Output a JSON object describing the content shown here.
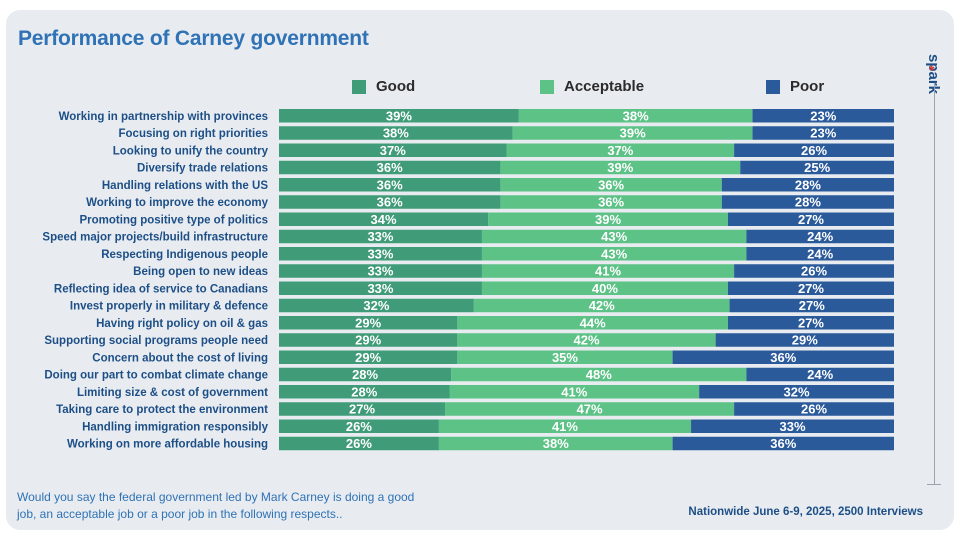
{
  "title": "Performance of Carney government",
  "brand": {
    "name": "spark",
    "mark": "*"
  },
  "footnote": "Would you say the federal government led by Mark Carney is doing a good job, an acceptable job or a poor job in the following respects..",
  "source": "Nationwide June 6-9, 2025, 2500 Interviews",
  "colors": {
    "good": "#3f9b78",
    "acceptable": "#5cc286",
    "poor": "#2b5a9b",
    "title": "#2f72b5",
    "label": "#1d4f86"
  },
  "chart_data": {
    "type": "bar",
    "orientation": "horizontal",
    "stacked": true,
    "value_unit": "%",
    "legend_position": "top",
    "xlim": [
      0,
      100
    ],
    "categories": [
      "Working in partnership with provinces",
      "Focusing on right priorities",
      "Looking to unify the country",
      "Diversify trade relations",
      "Handling relations with the US",
      "Working to improve the economy",
      "Promoting positive type of politics",
      "Speed major projects/build infrastructure",
      "Respecting Indigenous people",
      "Being open to new ideas",
      "Reflecting idea of service to Canadians",
      "Invest properly in military & defence",
      "Having right policy on oil & gas",
      "Supporting social programs people need",
      "Concern about the cost of living",
      "Doing our part to combat climate change",
      "Limiting size & cost of government",
      "Taking care to protect the environment",
      "Handling immigration responsibly",
      "Working on more affordable housing"
    ],
    "series": [
      {
        "name": "Good",
        "values": [
          39,
          38,
          37,
          36,
          36,
          36,
          34,
          33,
          33,
          33,
          33,
          32,
          29,
          29,
          29,
          28,
          28,
          27,
          26,
          26
        ]
      },
      {
        "name": "Acceptable",
        "values": [
          38,
          39,
          37,
          39,
          36,
          36,
          39,
          43,
          43,
          41,
          40,
          42,
          44,
          42,
          35,
          48,
          41,
          47,
          41,
          38
        ]
      },
      {
        "name": "Poor",
        "values": [
          23,
          23,
          26,
          25,
          28,
          28,
          27,
          24,
          24,
          26,
          27,
          27,
          27,
          29,
          36,
          24,
          32,
          26,
          33,
          36
        ]
      }
    ]
  }
}
